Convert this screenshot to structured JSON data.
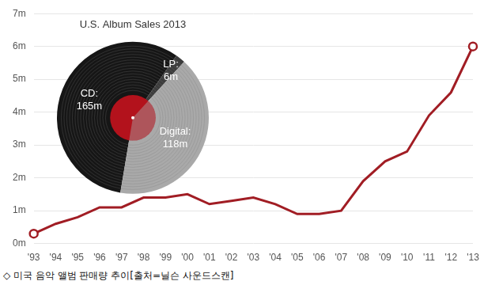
{
  "chart_data": [
    {
      "type": "line",
      "categories": [
        "'93",
        "'94",
        "'95",
        "'96",
        "'97",
        "'98",
        "'99",
        "'00",
        "'01",
        "'02",
        "'03",
        "'04",
        "'05",
        "'06",
        "'07",
        "'08",
        "'09",
        "'10",
        "'11",
        "'12",
        "'13"
      ],
      "values": [
        0.3,
        0.6,
        0.8,
        1.1,
        1.1,
        1.4,
        1.4,
        1.5,
        1.2,
        1.3,
        1.4,
        1.2,
        0.9,
        0.9,
        1.0,
        1.9,
        2.5,
        2.8,
        3.9,
        4.6,
        6.0
      ],
      "color": "#a11d24",
      "marker": "endpoints",
      "ylim": [
        0,
        7
      ],
      "yticks": [
        {
          "value": 0,
          "label": "0m"
        },
        {
          "value": 1,
          "label": "1m"
        },
        {
          "value": 2,
          "label": "2m"
        },
        {
          "value": 3,
          "label": "3m"
        },
        {
          "value": 4,
          "label": "4m"
        },
        {
          "value": 5,
          "label": "5m"
        },
        {
          "value": 6,
          "label": "6m"
        },
        {
          "value": 7,
          "label": "7m"
        }
      ],
      "grid": true
    },
    {
      "type": "pie",
      "title": "U.S. Album Sales 2013",
      "categories": [
        "CD:",
        "LP:",
        "Digital:"
      ],
      "values": [
        165,
        6,
        118
      ],
      "value_labels": [
        "165m",
        "6m",
        "118m"
      ],
      "colors": [
        "#161616",
        "#3c3c3c",
        "#a9a9a9"
      ],
      "data_labels": true
    }
  ],
  "caption": "◇ 미국 음악 앨범 판매량 추이[출처=닐슨 사운드스캔]"
}
